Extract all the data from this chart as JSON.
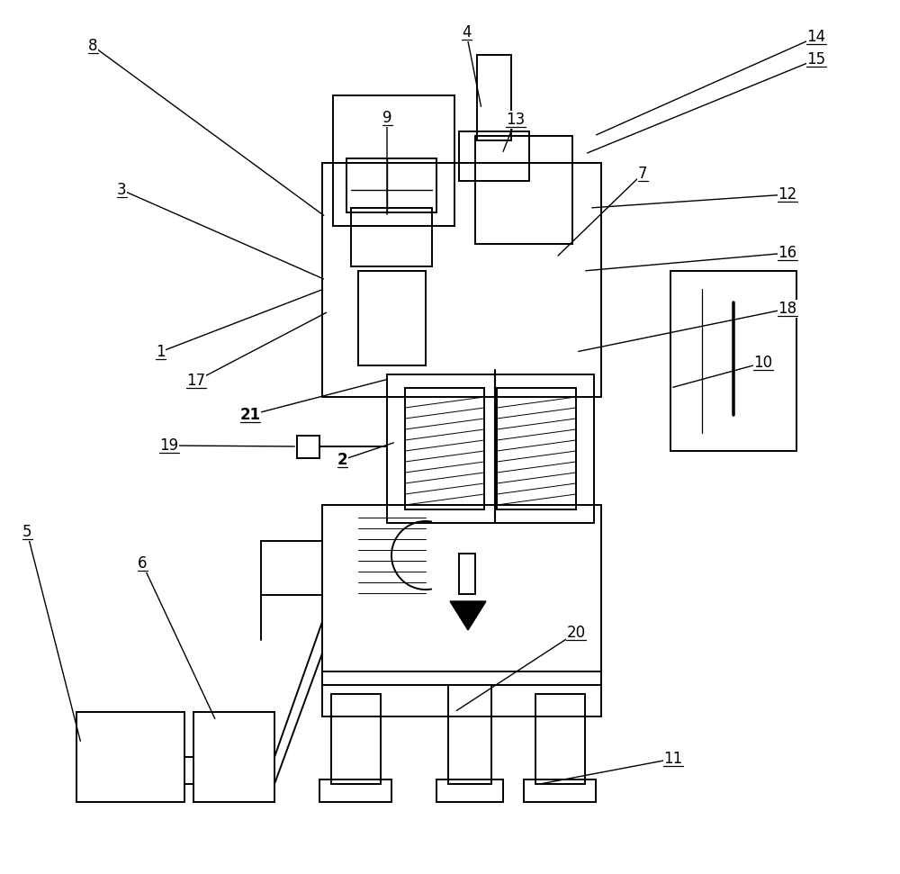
{
  "bg": "#ffffff",
  "lc": "#000000",
  "lw": 1.4
}
